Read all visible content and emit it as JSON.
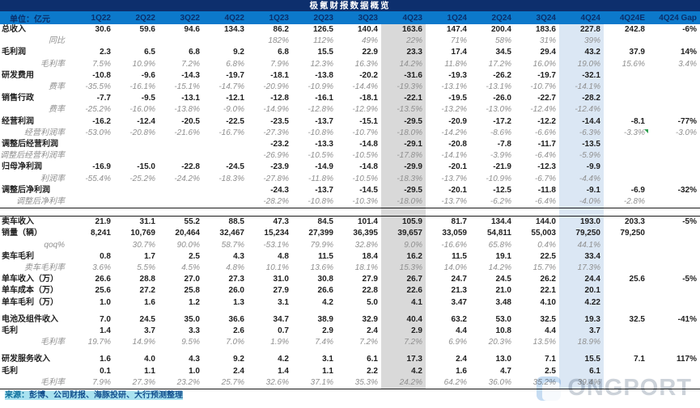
{
  "title": "极氪财报数据概览",
  "footer": {
    "source_prefix": "来源：",
    "source_body": "彭博、公司财报、海豚投研、大行预测整理"
  },
  "watermark": "ONGPORT",
  "colors": {
    "title_bg": "#0d2f6d",
    "header_bg": "#0c79cb",
    "header_text": "#0a2f6b",
    "gap_red": "#d63c3c",
    "band_4q23": "#d9d9d9",
    "band_4q24": "#dbe7f4",
    "sub_text": "#8f8f8f",
    "source_highlight": "#a9e2f0"
  },
  "chart_data": {
    "type": "table",
    "unit_label": "单位：亿元",
    "columns": [
      "1Q22",
      "2Q22",
      "3Q22",
      "4Q22",
      "1Q23",
      "2Q23",
      "3Q23",
      "4Q23",
      "1Q24",
      "2Q24",
      "3Q24",
      "4Q24",
      "4Q24E",
      "4Q24 Gap"
    ],
    "highlight_columns": {
      "4Q23": "gray",
      "4Q24": "blue"
    },
    "rows": [
      {
        "label": "总收入",
        "style": "main",
        "values": [
          "30.6",
          "59.6",
          "94.6",
          "134.3",
          "86.2",
          "126.5",
          "140.4",
          "163.6",
          "147.4",
          "200.4",
          "183.6",
          "227.8",
          "242.8",
          "-6%"
        ]
      },
      {
        "label": "同比",
        "style": "sub",
        "values": [
          "",
          "",
          "",
          "",
          "182%",
          "112%",
          "49%",
          "22%",
          "71%",
          "58%",
          "31%",
          "39%",
          "",
          ""
        ]
      },
      {
        "label": "毛利润",
        "style": "main",
        "values": [
          "2.3",
          "6.5",
          "6.8",
          "9.2",
          "6.8",
          "15.5",
          "22.9",
          "23.3",
          "17.4",
          "34.5",
          "29.4",
          "43.2",
          "37.9",
          "14%"
        ]
      },
      {
        "label": "毛利率",
        "style": "sub",
        "values": [
          "7.5%",
          "10.9%",
          "7.2%",
          "6.8%",
          "7.9%",
          "12.3%",
          "16.3%",
          "14.2%",
          "11.8%",
          "17.2%",
          "16.0%",
          "19.0%",
          "15.6%",
          "3.4%"
        ]
      },
      {
        "label": "研发费用",
        "style": "main",
        "values": [
          "-10.8",
          "-9.6",
          "-14.3",
          "-19.7",
          "-18.1",
          "-13.8",
          "-20.2",
          "-31.6",
          "-19.3",
          "-26.2",
          "-19.7",
          "-32.1",
          "",
          ""
        ]
      },
      {
        "label": "费率",
        "style": "sub",
        "values": [
          "-35.5%",
          "-16.1%",
          "-15.1%",
          "-14.7%",
          "-20.9%",
          "-10.9%",
          "-14.4%",
          "-19.3%",
          "-13.1%",
          "-13.1%",
          "-10.7%",
          "-14.1%",
          "",
          ""
        ]
      },
      {
        "label": "销售行政",
        "style": "main",
        "values": [
          "-7.7",
          "-9.5",
          "-13.1",
          "-12.1",
          "-12.8",
          "-16.1",
          "-18.1",
          "-22.1",
          "-19.5",
          "-26.0",
          "-22.7",
          "-28.2",
          "",
          ""
        ]
      },
      {
        "label": "费率",
        "style": "sub",
        "values": [
          "-25.2%",
          "-16.0%",
          "-13.8%",
          "-9.0%",
          "-14.9%",
          "-12.8%",
          "-12.9%",
          "-13.5%",
          "-13.2%",
          "-13.0%",
          "-12.4%",
          "-12.4%",
          "",
          ""
        ]
      },
      {
        "label": "经营利润",
        "style": "main",
        "values": [
          "-16.2",
          "-12.4",
          "-20.5",
          "-22.5",
          "-23.5",
          "-13.7",
          "-15.1",
          "-29.5",
          "-20.9",
          "-17.2",
          "-12.2",
          "-14.4",
          "-8.1",
          "-77%"
        ]
      },
      {
        "label": "经营利润率",
        "style": "sub",
        "note_cell": 12,
        "values": [
          "-53.0%",
          "-20.8%",
          "-21.6%",
          "-16.7%",
          "-27.3%",
          "-10.8%",
          "-10.7%",
          "-18.0%",
          "-14.2%",
          "-8.6%",
          "-6.6%",
          "-6.3%",
          "-3.3%",
          "-3.0%"
        ]
      },
      {
        "label": "调整后经营利润",
        "style": "main",
        "values": [
          "",
          "",
          "",
          "",
          "-23.2",
          "-13.3",
          "-14.8",
          "-29.1",
          "-20.8",
          "-7.8",
          "-11.7",
          "-13.5",
          "",
          ""
        ]
      },
      {
        "label": "调整后经营利润率",
        "style": "sub",
        "values": [
          "",
          "",
          "",
          "",
          "-26.9%",
          "-10.5%",
          "-10.5%",
          "-17.8%",
          "-14.1%",
          "-3.9%",
          "-6.4%",
          "-5.9%",
          "",
          ""
        ]
      },
      {
        "label": "归母净利润",
        "style": "main",
        "values": [
          "-16.9",
          "-15.0",
          "-22.8",
          "-24.5",
          "-23.9",
          "-14.9",
          "-14.8",
          "-29.9",
          "-20.1",
          "-21.9",
          "-12.3",
          "-9.9",
          "",
          ""
        ]
      },
      {
        "label": "利润率",
        "style": "sub",
        "values": [
          "-55.4%",
          "-25.2%",
          "-24.2%",
          "-18.3%",
          "-27.8%",
          "-11.8%",
          "-10.5%",
          "-18.3%",
          "-13.7%",
          "-10.9%",
          "-6.7%",
          "-4.4%",
          "",
          ""
        ]
      },
      {
        "label": "调整后净利润",
        "style": "main",
        "values": [
          "",
          "",
          "",
          "",
          "-24.3",
          "-13.7",
          "-14.5",
          "-29.5",
          "-20.1",
          "-12.5",
          "-11.8",
          "-9.1",
          "-6.9",
          "-32%"
        ]
      },
      {
        "label": "调整后净利率",
        "style": "sub",
        "values": [
          "",
          "",
          "",
          "",
          "-28.2%",
          "-10.8%",
          "-10.3%",
          "-18.0%",
          "-13.7%",
          "-6.2%",
          "-6.4%",
          "-4.0%",
          "-2.8%",
          ""
        ]
      },
      {
        "style": "separator"
      },
      {
        "label": "卖车收入",
        "style": "main",
        "values": [
          "21.9",
          "31.1",
          "55.2",
          "88.5",
          "47.3",
          "84.5",
          "101.4",
          "105.9",
          "81.7",
          "134.4",
          "144.0",
          "193.0",
          "203.3",
          "-5%"
        ]
      },
      {
        "label": "销量（辆）",
        "style": "main",
        "values": [
          "8,241",
          "10,769",
          "20,464",
          "32,467",
          "15,234",
          "27,399",
          "36,395",
          "39,657",
          "33,059",
          "54,811",
          "55,003",
          "79,250",
          "79,250",
          ""
        ]
      },
      {
        "label": "qoq%",
        "style": "sub",
        "values": [
          "",
          "30.7%",
          "90.0%",
          "58.7%",
          "-53.1%",
          "79.9%",
          "32.8%",
          "9.0%",
          "-16.6%",
          "65.8%",
          "0.4%",
          "44.1%",
          "",
          ""
        ]
      },
      {
        "label": "卖车毛利",
        "style": "main",
        "values": [
          "0.8",
          "1.7",
          "2.5",
          "4.3",
          "4.8",
          "11.5",
          "18.4",
          "16.2",
          "11.5",
          "19.1",
          "22.5",
          "33.4",
          "",
          ""
        ]
      },
      {
        "label": "卖车毛利率",
        "style": "sub",
        "values": [
          "3.6%",
          "5.5%",
          "4.5%",
          "4.8%",
          "10.1%",
          "13.6%",
          "18.1%",
          "15.3%",
          "14.0%",
          "14.2%",
          "15.7%",
          "17.3%",
          "",
          ""
        ]
      },
      {
        "label": "单车收入（万）",
        "style": "main",
        "values": [
          "26.6",
          "28.8",
          "27.0",
          "27.3",
          "31.0",
          "30.8",
          "27.9",
          "26.7",
          "24.7",
          "24.5",
          "26.2",
          "24.4",
          "25.6",
          "-5%"
        ]
      },
      {
        "label": "单车成本（万）",
        "style": "main",
        "values": [
          "25.6",
          "27.2",
          "25.8",
          "26.0",
          "27.9",
          "26.6",
          "22.8",
          "22.6",
          "21.3",
          "21.0",
          "22.1",
          "20.1",
          "",
          ""
        ]
      },
      {
        "label": "单车毛利（万）",
        "style": "main",
        "values": [
          "1.0",
          "1.6",
          "1.2",
          "1.3",
          "3.1",
          "4.2",
          "5.0",
          "4.1",
          "3.47",
          "3.48",
          "4.10",
          "4.22",
          "",
          ""
        ]
      },
      {
        "style": "spacer"
      },
      {
        "label": "电池及组件收入",
        "style": "main",
        "values": [
          "7.0",
          "24.5",
          "35.0",
          "36.6",
          "34.7",
          "38.9",
          "32.9",
          "40.4",
          "63.2",
          "53.0",
          "32.5",
          "19.3",
          "32.5",
          "-41%"
        ]
      },
      {
        "label": "毛利",
        "style": "main",
        "values": [
          "1.4",
          "3.7",
          "3.3",
          "2.6",
          "0.7",
          "2.9",
          "2.4",
          "2.9",
          "4.4",
          "10.8",
          "4.4",
          "3.7",
          "",
          ""
        ]
      },
      {
        "label": "毛利率",
        "style": "sub",
        "values": [
          "19.7%",
          "14.9%",
          "9.5%",
          "7.0%",
          "1.9%",
          "7.4%",
          "7.2%",
          "7.2%",
          "6.9%",
          "20.3%",
          "13.5%",
          "18.9%",
          "",
          ""
        ]
      },
      {
        "style": "spacer"
      },
      {
        "label": "研发服务收入",
        "style": "main",
        "values": [
          "1.6",
          "4.0",
          "4.3",
          "9.2",
          "4.2",
          "3.1",
          "6.1",
          "17.3",
          "2.4",
          "13.0",
          "7.1",
          "15.5",
          "7.1",
          "117%"
        ]
      },
      {
        "label": "毛利",
        "style": "main",
        "values": [
          "0.1",
          "1.1",
          "1.0",
          "2.4",
          "1.4",
          "1.1",
          "2.2",
          "4.2",
          "1.6",
          "4.7",
          "2.5",
          "6.1",
          "",
          ""
        ]
      },
      {
        "label": "毛利率",
        "style": "sub",
        "values": [
          "7.9%",
          "27.3%",
          "23.2%",
          "25.7%",
          "32.6%",
          "37.1%",
          "35.3%",
          "24.2%",
          "64.2%",
          "36.0%",
          "35.2%",
          "39.4%",
          "",
          ""
        ]
      }
    ]
  }
}
